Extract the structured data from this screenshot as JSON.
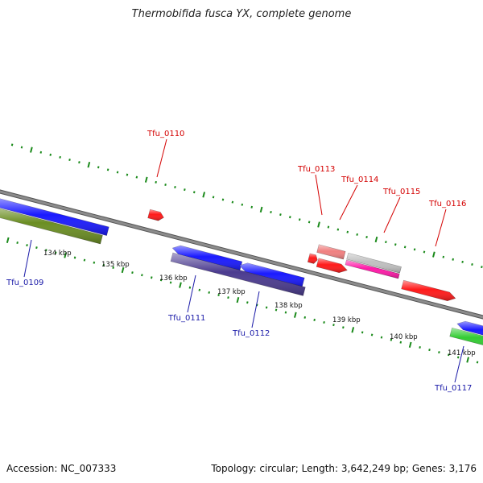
{
  "title": "Thermobifida fusca YX, complete genome",
  "footer": {
    "accession": "Accession: NC_007333",
    "topology": "Topology: circular; Length: 3,642,249 bp; Genes: 3,176"
  },
  "colors": {
    "backbone": "#8c8c8c",
    "tick": "#1a8a1a",
    "forward_label": "#d40000",
    "reverse_label": "#1a1aa8"
  },
  "kbp_labels": [
    "134 kbp",
    "135 kbp",
    "136 kbp",
    "137 kbp",
    "138 kbp",
    "139 kbp",
    "140 kbp",
    "141 kbp"
  ],
  "gene_labels": {
    "forward": [
      "Tfu_0110",
      "Tfu_0113",
      "Tfu_0114",
      "Tfu_0115",
      "Tfu_0116"
    ],
    "reverse": [
      "Tfu_0109",
      "Tfu_0111",
      "Tfu_0112",
      "Tfu_0117"
    ]
  },
  "features": {
    "forward": [
      {
        "name": "Tfu_0110",
        "color": "#ff1a1a"
      },
      {
        "name": "Tfu_0113",
        "color": "#ff1a1a"
      },
      {
        "name": "Tfu_0114",
        "color": "#f08080"
      },
      {
        "name": "Tfu_0115",
        "color": "#c0c0c0"
      },
      {
        "name": "Tfu_0115-b",
        "color": "#ff1aa8"
      },
      {
        "name": "Tfu_0115-c",
        "color": "#ff1a1a"
      },
      {
        "name": "Tfu_0116",
        "color": "#ff1a1a"
      }
    ],
    "reverse": [
      {
        "name": "Tfu_0109",
        "color": "#1a1aff"
      },
      {
        "name": "Tfu_0109-b",
        "color": "#6b8e23"
      },
      {
        "name": "Tfu_0111",
        "color": "#1a1aff"
      },
      {
        "name": "Tfu_0111-b",
        "color": "#4b3b8f"
      },
      {
        "name": "Tfu_0112",
        "color": "#1a1aff"
      },
      {
        "name": "Tfu_0117",
        "color": "#1a1aff"
      },
      {
        "name": "Tfu_0117-b",
        "color": "#33cc33"
      }
    ]
  }
}
